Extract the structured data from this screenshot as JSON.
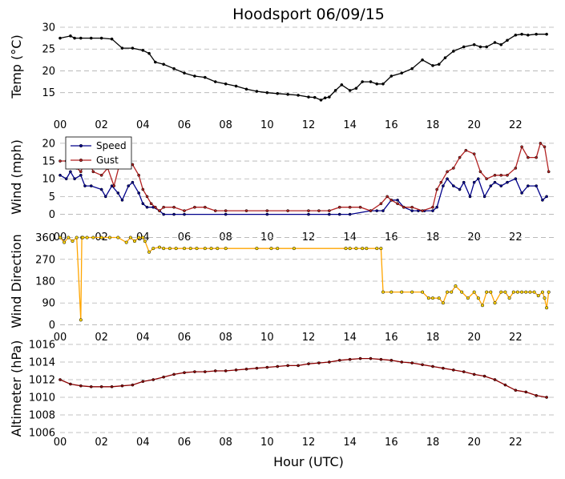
{
  "title": "Hoodsport 06/09/15",
  "xlabel": "Hour (UTC)",
  "x_tick_labels": [
    "00",
    "02",
    "04",
    "06",
    "08",
    "10",
    "12",
    "14",
    "16",
    "18",
    "20",
    "22"
  ],
  "colors": {
    "temp": "#000000",
    "speed": "#00008b",
    "gust": "#b22222",
    "direction_line": "#ffa500",
    "direction_marker": "#ffd700",
    "altimeter": "#8b0000",
    "grid": "#b0b0b0"
  },
  "chart_data": [
    {
      "type": "line",
      "ylabel": "Temp (°C)",
      "xlim": [
        0,
        24
      ],
      "ylim": [
        12,
        30
      ],
      "yticks": [
        15,
        20,
        25,
        30
      ],
      "grid": "horizontal dashed",
      "series": [
        {
          "x": [
            0,
            0.5,
            0.7,
            1,
            1.5,
            2,
            2.5,
            3,
            3.5,
            4,
            4.3,
            4.6,
            5,
            5.5,
            6,
            6.5,
            7,
            7.5,
            8,
            8.5,
            9,
            9.5,
            10,
            10.5,
            11,
            11.5,
            12,
            12.3,
            12.6,
            12.8,
            13,
            13.3,
            13.6,
            14,
            14.3,
            14.6,
            15,
            15.3,
            15.6,
            16,
            16.5,
            17,
            17.5,
            18,
            18.3,
            18.6,
            19,
            19.5,
            20,
            20.3,
            20.6,
            21,
            21.3,
            21.6,
            22,
            22.3,
            22.6,
            23,
            23.5
          ],
          "y": [
            27.5,
            28,
            27.5,
            27.5,
            27.5,
            27.5,
            27.3,
            25.2,
            25.2,
            24.7,
            24,
            22,
            21.5,
            20.5,
            19.5,
            18.8,
            18.5,
            17.5,
            17,
            16.5,
            15.8,
            15.3,
            15,
            14.8,
            14.6,
            14.4,
            14,
            13.9,
            13.3,
            13.8,
            14,
            15.5,
            16.8,
            15.5,
            16,
            17.5,
            17.5,
            17,
            17,
            18.8,
            19.5,
            20.5,
            22.5,
            21.2,
            21.5,
            23,
            24.5,
            25.5,
            26,
            25.5,
            25.5,
            26.5,
            26,
            27,
            28.2,
            28.4,
            28.2,
            28.4,
            28.4
          ]
        }
      ]
    },
    {
      "type": "line",
      "ylabel": "Wind (mph)",
      "xlim": [
        0,
        24
      ],
      "ylim": [
        -1,
        22
      ],
      "yticks": [
        0,
        5,
        10,
        15,
        20
      ],
      "grid": "horizontal dashed",
      "legend": "top-left",
      "series": [
        {
          "name": "Speed",
          "x": [
            0,
            0.3,
            0.5,
            0.7,
            1,
            1.2,
            1.5,
            2,
            2.2,
            2.5,
            2.8,
            3,
            3.3,
            3.5,
            3.8,
            4,
            4.2,
            4.5,
            4.8,
            5,
            5.5,
            6,
            8,
            10,
            12,
            13,
            13.5,
            14,
            15,
            15.3,
            15.6,
            16,
            16.3,
            16.6,
            17,
            17.3,
            17.6,
            18,
            18.2,
            18.5,
            18.7,
            19,
            19.3,
            19.5,
            19.8,
            20,
            20.2,
            20.5,
            20.8,
            21,
            21.3,
            21.6,
            22,
            22.3,
            22.6,
            23,
            23.3,
            23.5
          ],
          "y": [
            11,
            10,
            12,
            10,
            11,
            8,
            8,
            7,
            5,
            8,
            6,
            4,
            8,
            9,
            6,
            3,
            2,
            2,
            1,
            0,
            0,
            0,
            0,
            0,
            0,
            0,
            0,
            0,
            1,
            1,
            1,
            4,
            4,
            2,
            1,
            1,
            1,
            1,
            2,
            8,
            10,
            8,
            7,
            9,
            5,
            9,
            10,
            5,
            8,
            9,
            8,
            9,
            10,
            6,
            8,
            8,
            4,
            5
          ]
        },
        {
          "name": "Gust",
          "x": [
            0,
            0.3,
            0.6,
            0.8,
            1,
            1.3,
            1.6,
            2,
            2.3,
            2.6,
            3,
            3.3,
            3.5,
            3.8,
            4,
            4.2,
            4.4,
            4.6,
            4.8,
            5,
            5.5,
            6,
            6.5,
            7,
            7.5,
            8,
            9,
            10,
            11,
            12,
            12.5,
            13,
            13.5,
            14,
            14.5,
            15,
            15.5,
            15.8,
            16,
            16.3,
            16.6,
            17,
            17.5,
            18,
            18.2,
            18.4,
            18.7,
            19,
            19.3,
            19.6,
            20,
            20.3,
            20.6,
            21,
            21.3,
            21.6,
            22,
            22.3,
            22.6,
            23,
            23.2,
            23.4,
            23.6
          ],
          "y": [
            15,
            15,
            17,
            13,
            12,
            16,
            12,
            11,
            13,
            8,
            17,
            14,
            14,
            11,
            7,
            5,
            3,
            2,
            1,
            2,
            2,
            1,
            2,
            2,
            1,
            1,
            1,
            1,
            1,
            1,
            1,
            1,
            2,
            2,
            2,
            1,
            3,
            5,
            4,
            3,
            2,
            2,
            1,
            2,
            7,
            9,
            12,
            13,
            16,
            18,
            17,
            12,
            10,
            11,
            11,
            11,
            13,
            19,
            16,
            16,
            20,
            19,
            12
          ]
        }
      ]
    },
    {
      "type": "line",
      "ylabel": "Wind Direction",
      "xlim": [
        0,
        24
      ],
      "ylim": [
        -15,
        375
      ],
      "yticks": [
        0,
        90,
        180,
        270,
        360
      ],
      "grid": "horizontal dashed",
      "series": [
        {
          "x": [
            0,
            0.2,
            0.4,
            0.6,
            0.8,
            1,
            1.05,
            1.1,
            1.3,
            1.6,
            2,
            2.4,
            2.8,
            3.2,
            3.4,
            3.6,
            3.8,
            4,
            4.1,
            4.3,
            4.5,
            4.8,
            5,
            5.3,
            5.6,
            6,
            6.3,
            6.6,
            7,
            7.3,
            7.6,
            8,
            9.5,
            10.2,
            10.5,
            11.3,
            13.8,
            14,
            14.3,
            14.6,
            14.8,
            15.3,
            15.5,
            15.6,
            16,
            16.5,
            17,
            17.5,
            17.8,
            18,
            18.3,
            18.5,
            18.7,
            18.9,
            19.1,
            19.4,
            19.7,
            20,
            20.2,
            20.4,
            20.6,
            20.8,
            21,
            21.3,
            21.5,
            21.7,
            21.9,
            22.1,
            22.3,
            22.5,
            22.7,
            22.9,
            23.1,
            23.3,
            23.4,
            23.5,
            23.6
          ],
          "y": [
            360,
            340,
            360,
            345,
            360,
            20,
            360,
            360,
            360,
            360,
            360,
            360,
            360,
            340,
            360,
            345,
            360,
            360,
            345,
            300,
            315,
            320,
            315,
            315,
            315,
            315,
            315,
            315,
            315,
            315,
            315,
            315,
            315,
            315,
            315,
            315,
            315,
            315,
            315,
            315,
            315,
            315,
            315,
            135,
            135,
            135,
            135,
            135,
            110,
            110,
            110,
            90,
            135,
            135,
            160,
            135,
            110,
            135,
            110,
            80,
            135,
            135,
            90,
            135,
            135,
            110,
            135,
            135,
            135,
            135,
            135,
            135,
            120,
            135,
            110,
            70,
            135
          ]
        }
      ]
    },
    {
      "type": "line",
      "ylabel": "Altimeter (hPa)",
      "xlim": [
        0,
        24
      ],
      "ylim": [
        1006,
        1016
      ],
      "yticks": [
        1006,
        1008,
        1010,
        1012,
        1014,
        1016
      ],
      "grid": "horizontal dashed",
      "series": [
        {
          "x": [
            0,
            0.5,
            1,
            1.5,
            2,
            2.5,
            3,
            3.5,
            4,
            4.5,
            5,
            5.5,
            6,
            6.5,
            7,
            7.5,
            8,
            8.5,
            9,
            9.5,
            10,
            10.5,
            11,
            11.5,
            12,
            12.5,
            13,
            13.5,
            14,
            14.5,
            15,
            15.5,
            16,
            16.5,
            17,
            17.5,
            18,
            18.5,
            19,
            19.5,
            20,
            20.5,
            21,
            21.5,
            22,
            22.5,
            23,
            23.5
          ],
          "y": [
            1012,
            1011.5,
            1011.3,
            1011.2,
            1011.2,
            1011.2,
            1011.3,
            1011.4,
            1011.8,
            1012,
            1012.3,
            1012.6,
            1012.8,
            1012.9,
            1012.9,
            1013,
            1013,
            1013.1,
            1013.2,
            1013.3,
            1013.4,
            1013.5,
            1013.6,
            1013.6,
            1013.8,
            1013.9,
            1014,
            1014.2,
            1014.3,
            1014.4,
            1014.4,
            1014.3,
            1014.2,
            1014,
            1013.9,
            1013.7,
            1013.5,
            1013.3,
            1013.1,
            1012.9,
            1012.6,
            1012.4,
            1012,
            1011.4,
            1010.8,
            1010.6,
            1010.2,
            1010
          ]
        }
      ]
    }
  ]
}
